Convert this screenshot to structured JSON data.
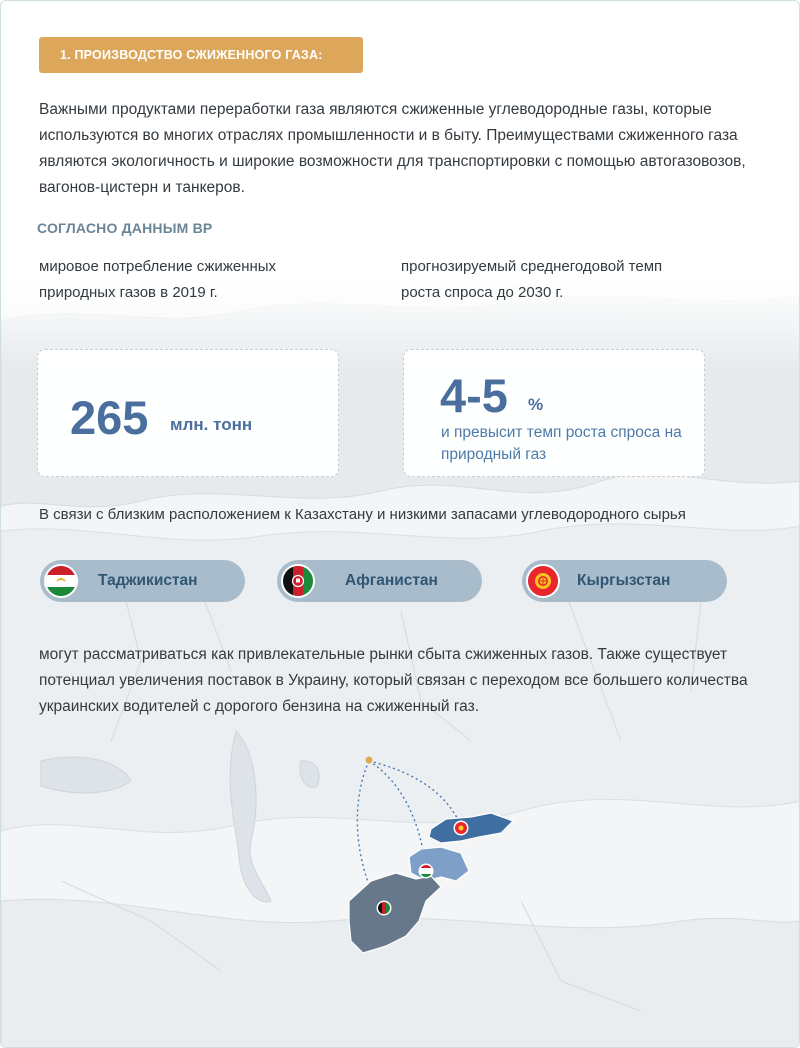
{
  "section": {
    "tag": "1. ПРОИЗВОДСТВО СЖИЖЕННОГО ГАЗА:",
    "intro": "Важными продуктами переработки газа являются сжиженные углеводородные газы, которые используются во многих отраслях промышленности и в быту. Преимуществами сжиженного газа являются экологичность и широкие возможности для транспортировки с помощью автогазовозов, вагонов-цистерн и танкеров."
  },
  "source": {
    "heading": "СОГЛАСНО ДАННЫМ BP"
  },
  "stats": [
    {
      "caption": "мировое потребление сжиженных природных газов в 2019 г.",
      "value": "265",
      "unit": "млн. тонн"
    },
    {
      "caption": "прогнозируемый среднегодовой темп роста спроса до 2030 г.",
      "value": "4-5",
      "unit": "%",
      "note": "и превысит темп роста спроса на природный газ"
    }
  ],
  "markets_intro": "В связи с близким расположением к Казахстану и низкими запасами углеводородного сырья",
  "countries": [
    {
      "name": "Таджикистан",
      "flag_icon": "tajikistan-flag-icon"
    },
    {
      "name": "Афганистан",
      "flag_icon": "afghanistan-flag-icon"
    },
    {
      "name": "Кыргызстан",
      "flag_icon": "kyrgyzstan-flag-icon"
    }
  ],
  "markets_outro": "могут рассматриваться как привлекательные рынки сбыта сжиженных газов. Также существует потенциал увеличения поставок в Украину, который связан с переходом все большего количества украинских водителей с дорогого бензина на сжиженный газ.",
  "colors": {
    "accent_tag": "#dca75a",
    "stat_blue": "#4a6f9e",
    "pill_bg": "#a9bccb",
    "kyrgyzstan_fill": "#3f6ea0",
    "tajikistan_fill": "#7ea0c8",
    "afghanistan_fill": "#66788a",
    "origin_dot": "#e0a850"
  }
}
